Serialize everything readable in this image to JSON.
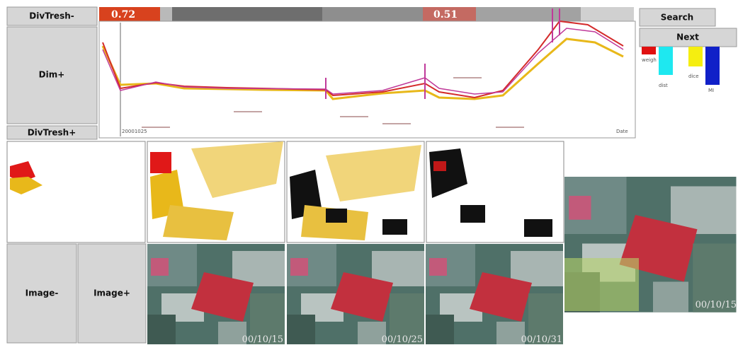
{
  "toolbar": {
    "div_thresh_minus": "DivTresh-",
    "div_thresh_plus": "DivTresh+",
    "dim_plus": "Dim+",
    "search": "Search",
    "next": "Next"
  },
  "slider": {
    "left_value": "0.72",
    "right_value": "0.51"
  },
  "plot": {
    "start_label": "20001025",
    "axis_label": "Date"
  },
  "legend": {
    "labels": [
      "weigh",
      "dist",
      "dice",
      "MI"
    ]
  },
  "image_nav": {
    "prev": "Image-",
    "next": "Image+"
  },
  "images": {
    "dates": [
      "00/10/15",
      "00/10/25",
      "00/10/31",
      "00/10/15"
    ]
  }
}
